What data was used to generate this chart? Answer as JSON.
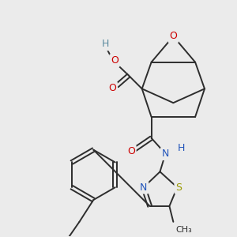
{
  "bg_color": "#ebebeb",
  "bond_color": "#2d2d2d",
  "figsize": [
    3.0,
    3.0
  ],
  "dpi": 100,
  "colors": {
    "O": "#cc0000",
    "N": "#2255bb",
    "S": "#999900",
    "H": "#5a8a9f",
    "C": "#2d2d2d"
  }
}
